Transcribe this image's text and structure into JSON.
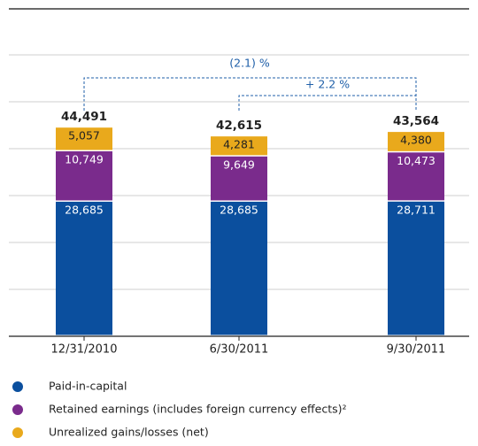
{
  "chart_data": {
    "type": "bar",
    "stacked": true,
    "categories": [
      "12/31/2010",
      "6/30/2011",
      "9/30/2011"
    ],
    "series": [
      {
        "name": "Paid-in-capital",
        "color": "#0b4f9e",
        "values": [
          28685,
          28685,
          28711
        ],
        "value_labels": [
          "28,685",
          "28,685",
          "28,711"
        ]
      },
      {
        "name": "Retained earnings (includes foreign currency effects)²",
        "color": "#7a2b8c",
        "values": [
          10749,
          9649,
          10473
        ],
        "value_labels": [
          "10,749",
          "9,649",
          "10,473"
        ]
      },
      {
        "name": "Unrealized gains/losses (net)",
        "color": "#e9a91c",
        "values": [
          5057,
          4281,
          4380
        ],
        "value_labels": [
          "5,057",
          "4,281",
          "4,380"
        ]
      }
    ],
    "totals": [
      44491,
      42615,
      43564
    ],
    "total_labels": [
      "44,491",
      "42,615",
      "43,564"
    ],
    "annotations": [
      "(2.1) %",
      "+ 2.2 %"
    ],
    "ylim": [
      0,
      70000
    ],
    "yticks": [
      0,
      10000,
      20000,
      30000,
      40000,
      50000,
      60000
    ],
    "grid": true
  }
}
